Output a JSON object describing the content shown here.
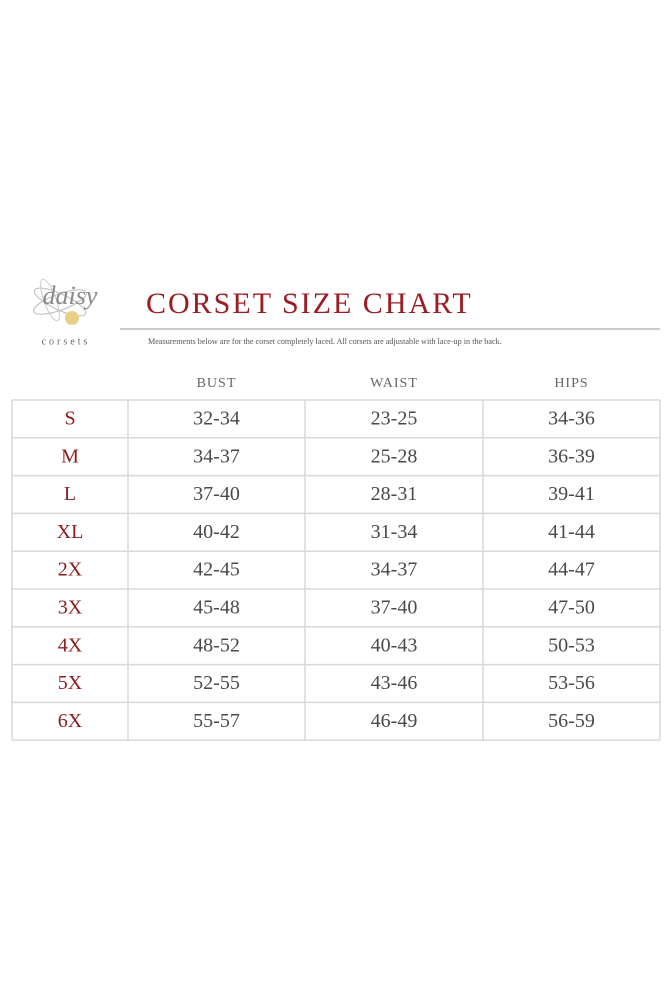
{
  "logo": {
    "name": "daisy",
    "tagline": "corsets"
  },
  "header": {
    "title": "CORSET SIZE CHART",
    "subtitle": "Measurements below are for the corset completely laced.  All corsets are adjustable with lace-up in the back."
  },
  "table": {
    "columns": [
      "BUST",
      "WAIST",
      "HIPS"
    ],
    "rows": [
      [
        "S",
        "32-34",
        "23-25",
        "34-36"
      ],
      [
        "M",
        "34-37",
        "25-28",
        "36-39"
      ],
      [
        "L",
        "37-40",
        "28-31",
        "39-41"
      ],
      [
        "XL",
        "40-42",
        "31-34",
        "41-44"
      ],
      [
        "2X",
        "42-45",
        "34-37",
        "44-47"
      ],
      [
        "3X",
        "45-48",
        "37-40",
        "47-50"
      ],
      [
        "4X",
        "48-52",
        "40-43",
        "50-53"
      ],
      [
        "5X",
        "52-55",
        "43-46",
        "53-56"
      ],
      [
        "6X",
        "55-57",
        "46-49",
        "56-59"
      ]
    ]
  }
}
